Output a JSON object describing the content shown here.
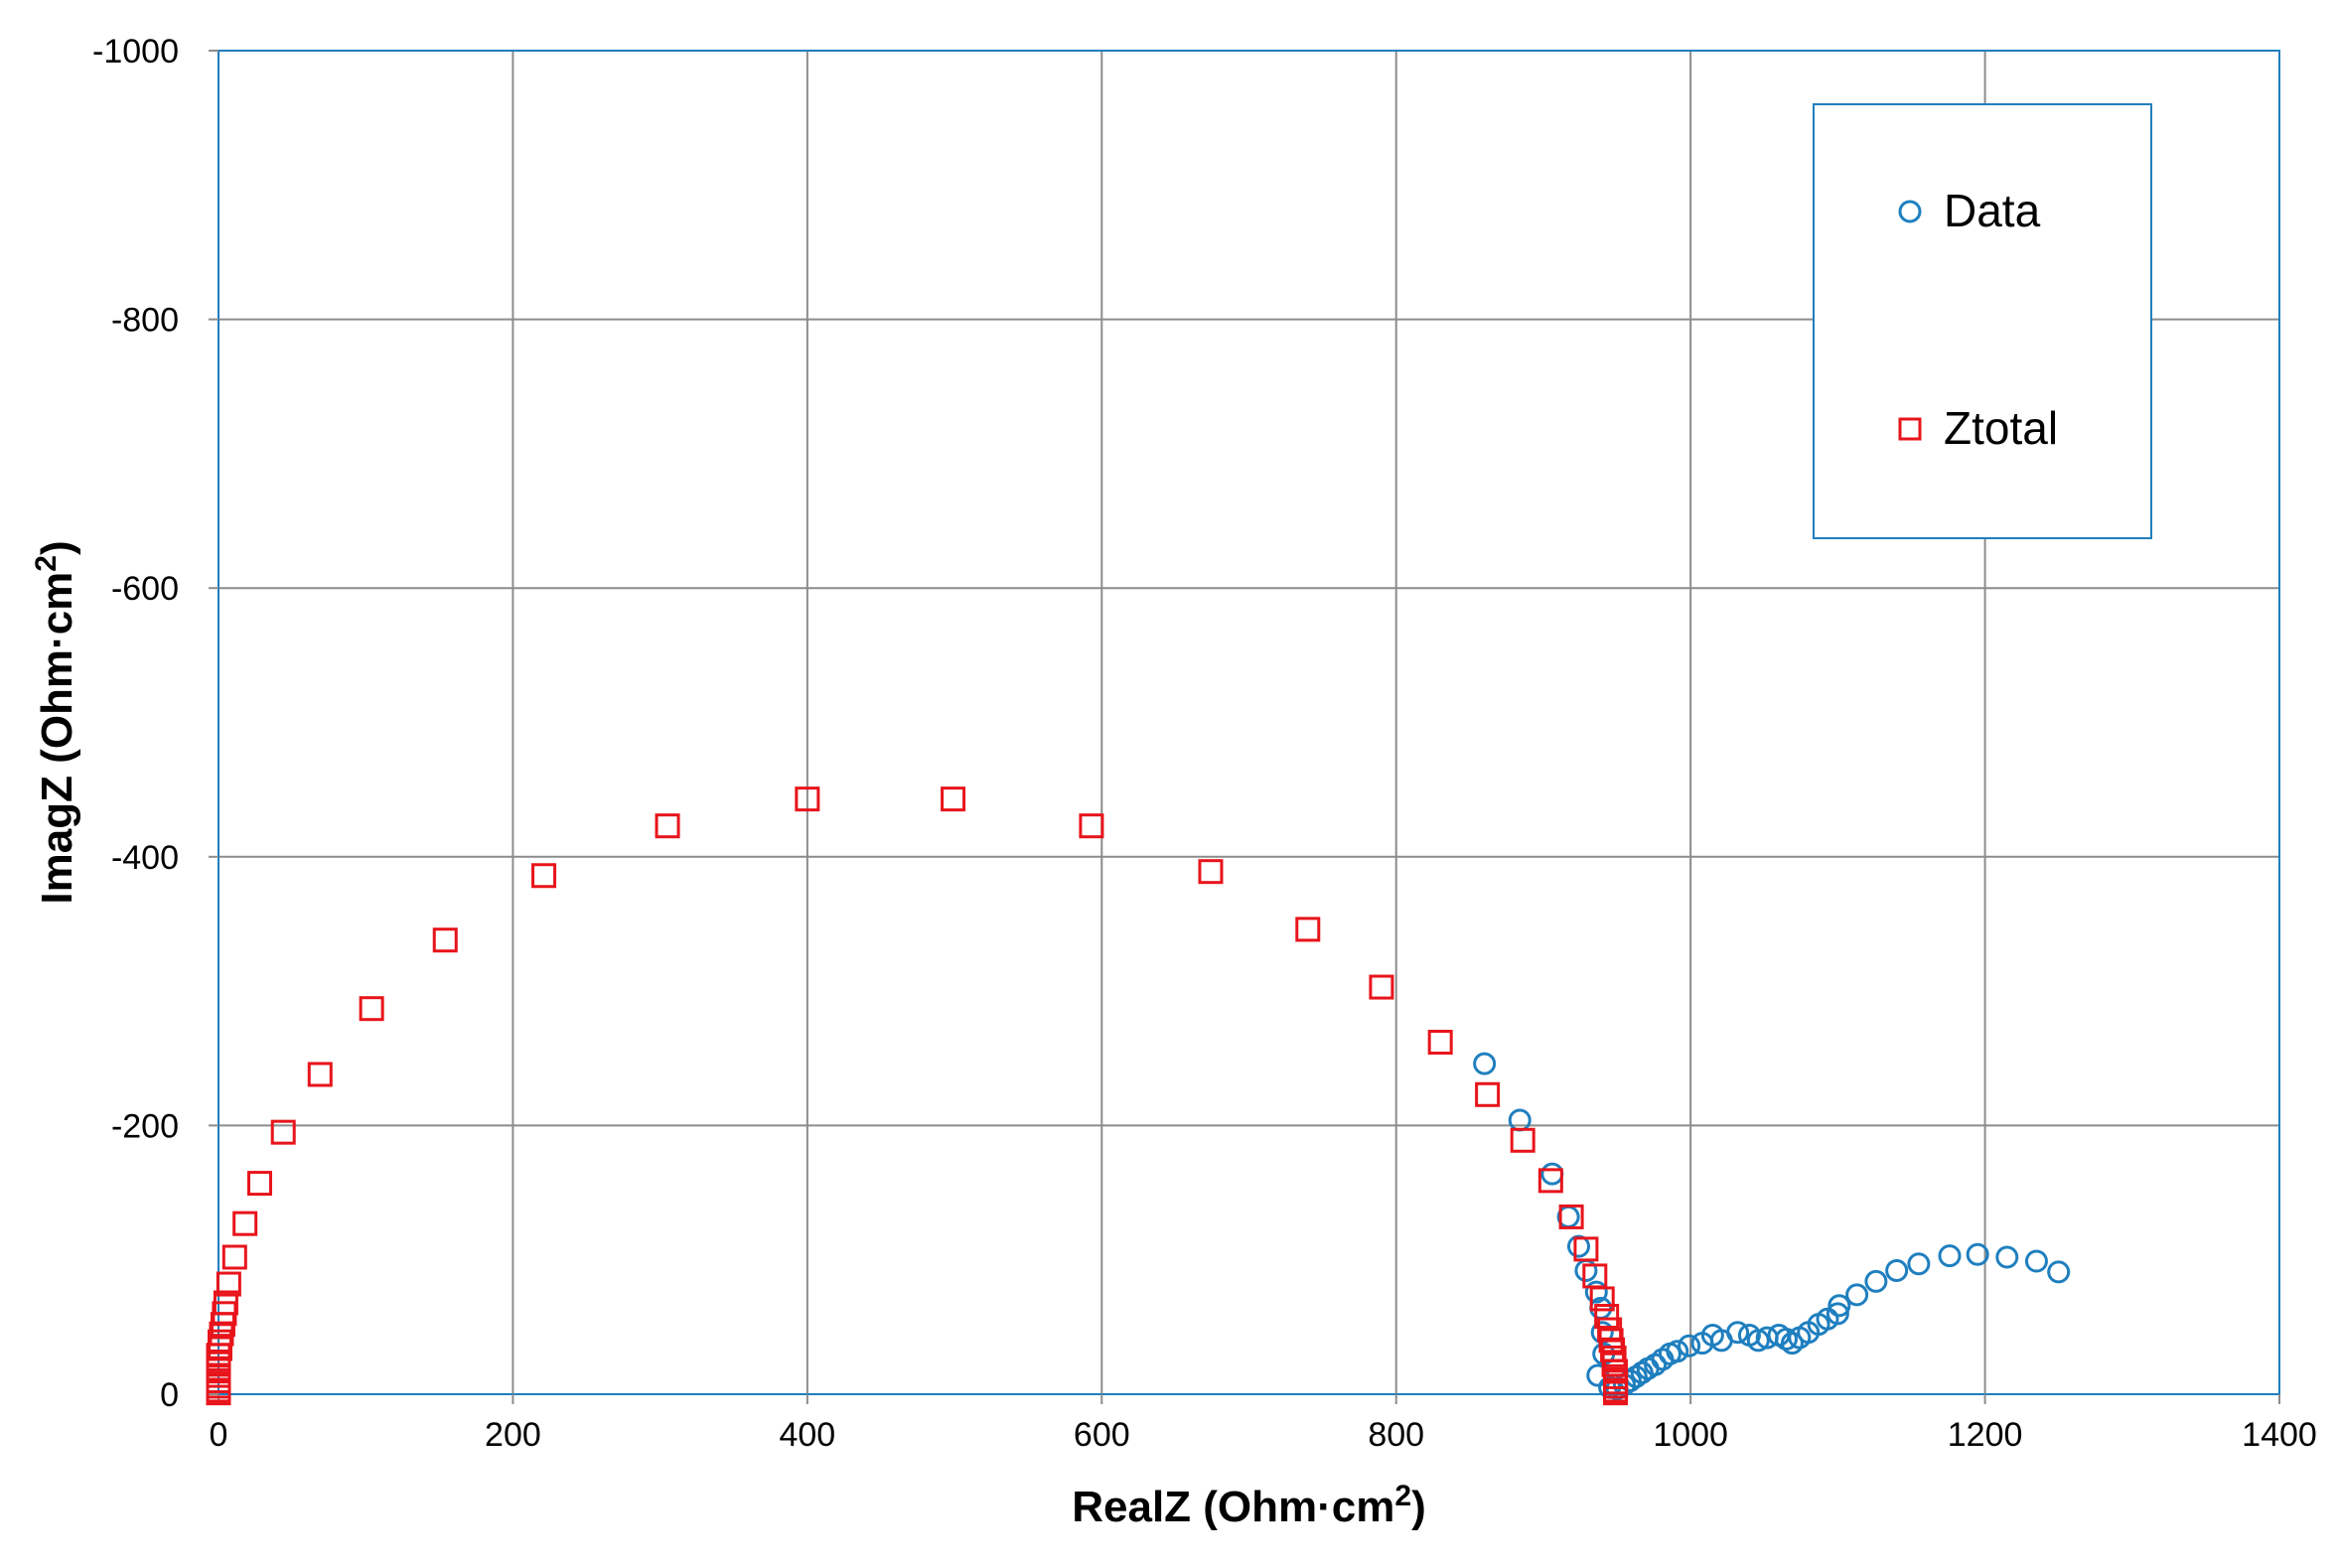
{
  "chart_data": {
    "type": "scatter",
    "title": "",
    "xlabel": "RealZ (Ohm·cm",
    "xlabel_sup": "2",
    "xlabel_end": ")",
    "ylabel": "ImagZ (Ohm·cm",
    "ylabel_sup": "2",
    "ylabel_end": ")",
    "xlim": [
      0,
      1400
    ],
    "ylim": [
      0,
      -1000
    ],
    "x_ticks": [
      "0",
      "200",
      "400",
      "600",
      "800",
      "1000",
      "1200",
      "1400"
    ],
    "x_tick_values": [
      0,
      200,
      400,
      600,
      800,
      1000,
      1200,
      1400
    ],
    "y_ticks": [
      "0",
      "-200",
      "-400",
      "-600",
      "-800",
      "-1000"
    ],
    "y_tick_values": [
      0,
      -200,
      -400,
      -600,
      -800,
      -1000
    ],
    "grid": true,
    "legend_position": "top-right",
    "series": [
      {
        "name": "Data",
        "marker": "circle",
        "color": "#1f7fbf",
        "points": [
          [
            860,
            -246
          ],
          [
            884,
            -204
          ],
          [
            906,
            -164
          ],
          [
            917,
            -132
          ],
          [
            924,
            -110
          ],
          [
            929,
            -92
          ],
          [
            936,
            -76
          ],
          [
            939,
            -64
          ],
          [
            940,
            -46
          ],
          [
            941,
            -30
          ],
          [
            937,
            -14
          ],
          [
            945,
            -5
          ],
          [
            950,
            -4
          ],
          [
            955,
            -7
          ],
          [
            959,
            -10
          ],
          [
            963,
            -13
          ],
          [
            967,
            -16
          ],
          [
            971,
            -19
          ],
          [
            976,
            -22
          ],
          [
            981,
            -26
          ],
          [
            986,
            -30
          ],
          [
            991,
            -32
          ],
          [
            999,
            -36
          ],
          [
            1008,
            -38
          ],
          [
            1015,
            -44
          ],
          [
            1021,
            -40
          ],
          [
            1032,
            -46
          ],
          [
            1040,
            -44
          ],
          [
            1046,
            -40
          ],
          [
            1052,
            -42
          ],
          [
            1060,
            -44
          ],
          [
            1065,
            -41
          ],
          [
            1069,
            -38
          ],
          [
            1074,
            -42
          ],
          [
            1080,
            -46
          ],
          [
            1087,
            -52
          ],
          [
            1093,
            -56
          ],
          [
            1100,
            -60
          ],
          [
            1101,
            -66
          ],
          [
            1113,
            -74
          ],
          [
            1126,
            -84
          ],
          [
            1140,
            -92
          ],
          [
            1155,
            -97
          ],
          [
            1176,
            -103
          ],
          [
            1195,
            -104
          ],
          [
            1215,
            -102
          ],
          [
            1235,
            -99
          ],
          [
            1250,
            -91
          ]
        ]
      },
      {
        "name": "Ztotal",
        "marker": "square",
        "color": "#e8141b",
        "points": [
          [
            0,
            -1
          ],
          [
            0,
            -3
          ],
          [
            0,
            -6
          ],
          [
            0,
            -10
          ],
          [
            0,
            -14
          ],
          [
            0,
            -19
          ],
          [
            0,
            -24
          ],
          [
            0,
            -29
          ],
          [
            1,
            -34
          ],
          [
            1,
            -39
          ],
          [
            2,
            -45
          ],
          [
            3,
            -52
          ],
          [
            4,
            -60
          ],
          [
            5,
            -68
          ],
          [
            7,
            -82
          ],
          [
            11,
            -102
          ],
          [
            18,
            -127
          ],
          [
            28,
            -157
          ],
          [
            44,
            -195
          ],
          [
            69,
            -238
          ],
          [
            104,
            -287
          ],
          [
            154,
            -338
          ],
          [
            221,
            -386
          ],
          [
            305,
            -423
          ],
          [
            400,
            -443
          ],
          [
            499,
            -443
          ],
          [
            593,
            -423
          ],
          [
            674,
            -389
          ],
          [
            740,
            -346
          ],
          [
            790,
            -303
          ],
          [
            830,
            -262
          ],
          [
            862,
            -223
          ],
          [
            886,
            -189
          ],
          [
            905,
            -159
          ],
          [
            919,
            -132
          ],
          [
            929,
            -108
          ],
          [
            935,
            -88
          ],
          [
            940,
            -71
          ],
          [
            943,
            -58
          ],
          [
            945,
            -48
          ],
          [
            946,
            -40
          ],
          [
            947,
            -33
          ],
          [
            948,
            -27
          ],
          [
            948,
            -22
          ],
          [
            949,
            -17
          ],
          [
            949,
            -13
          ],
          [
            949,
            -9
          ],
          [
            949,
            -6
          ],
          [
            949,
            -3
          ],
          [
            949,
            -1
          ]
        ]
      }
    ]
  }
}
